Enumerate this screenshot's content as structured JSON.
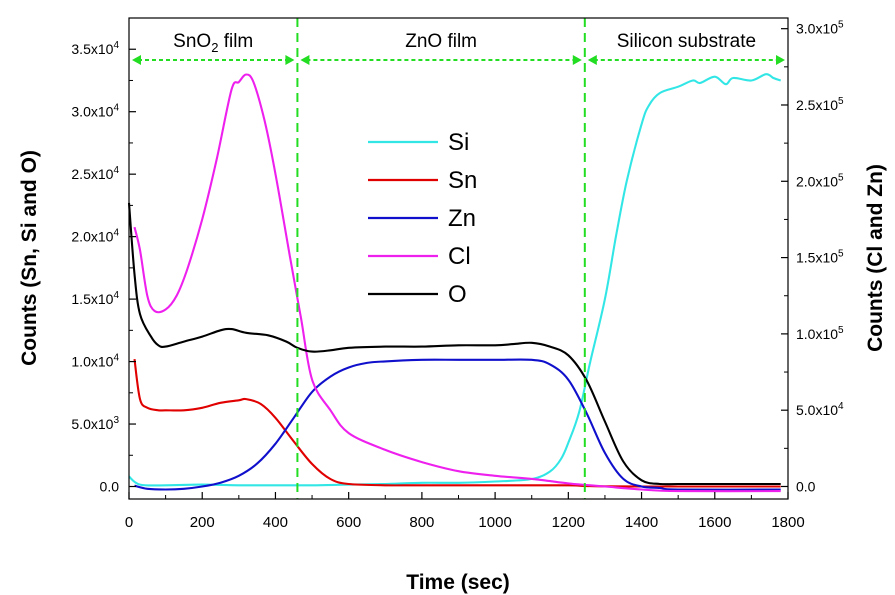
{
  "chart_data": {
    "type": "line",
    "xlabel": "Time (sec)",
    "ylabel_left": "Counts (Sn, Si and O)",
    "ylabel_right": "Counts (Cl and Zn)",
    "xlim": [
      0,
      1800
    ],
    "ylim_left": [
      -1000,
      37500
    ],
    "ylim_right": [
      -8200,
      307000
    ],
    "x_ticks": [
      0,
      200,
      400,
      600,
      800,
      1000,
      1200,
      1400,
      1600,
      1800
    ],
    "y_left_ticks": [
      0,
      5000,
      10000,
      15000,
      20000,
      25000,
      30000,
      35000
    ],
    "y_left_tick_labels": [
      "0.0",
      "5.0x10",
      "1.0x10",
      "1.5x10",
      "2.0x10",
      "2.5x10",
      "3.0x10",
      "3.5x10"
    ],
    "y_left_tick_exps": [
      "",
      "3",
      "4",
      "4",
      "4",
      "4",
      "4",
      "4"
    ],
    "y_right_ticks": [
      0,
      50000,
      100000,
      150000,
      200000,
      250000,
      300000
    ],
    "y_right_tick_labels": [
      "0.0",
      "5.0x10",
      "1.0x10",
      "1.5x10",
      "2.0x10",
      "2.5x10",
      "3.0x10"
    ],
    "y_right_tick_exps": [
      "",
      "4",
      "5",
      "5",
      "5",
      "5",
      "5"
    ],
    "regions": [
      {
        "label_main": "SnO",
        "label_sub": "2",
        "label_tail": " film",
        "x_start": 0,
        "x_end": 460
      },
      {
        "label_main": "ZnO film",
        "label_sub": "",
        "label_tail": "",
        "x_start": 460,
        "x_end": 1245
      },
      {
        "label_main": "Silicon substrate",
        "label_sub": "",
        "label_tail": "",
        "x_start": 1245,
        "x_end": 1800
      }
    ],
    "boundaries": [
      460,
      1245
    ],
    "series": [
      {
        "name": "Si",
        "axis": "left",
        "color": "#33e6e6",
        "x": [
          0,
          30,
          100,
          200,
          300,
          400,
          500,
          600,
          700,
          800,
          900,
          1000,
          1100,
          1150,
          1180,
          1200,
          1230,
          1260,
          1300,
          1330,
          1360,
          1400,
          1420,
          1450,
          1500,
          1540,
          1560,
          1600,
          1630,
          1650,
          1700,
          1740,
          1760,
          1780
        ],
        "y": [
          800,
          150,
          100,
          150,
          100,
          100,
          100,
          150,
          200,
          300,
          300,
          400,
          600,
          1200,
          2200,
          3500,
          6000,
          10000,
          15000,
          20000,
          24500,
          29000,
          30500,
          31500,
          32000,
          32500,
          32300,
          32800,
          32200,
          32700,
          32500,
          33000,
          32700,
          32500
        ]
      },
      {
        "name": "Sn",
        "axis": "left",
        "color": "#e00000",
        "x": [
          15,
          30,
          50,
          80,
          100,
          150,
          200,
          250,
          300,
          320,
          360,
          400,
          450,
          500,
          550,
          600,
          700,
          800,
          1000,
          1200,
          1240,
          1300,
          1400,
          1500,
          1780
        ],
        "y": [
          10200,
          7000,
          6300,
          6100,
          6100,
          6100,
          6300,
          6700,
          6900,
          7000,
          6600,
          5500,
          3600,
          1800,
          600,
          200,
          100,
          100,
          100,
          100,
          50,
          20,
          0,
          0,
          0
        ]
      },
      {
        "name": "Zn",
        "axis": "right",
        "color": "#1010cc",
        "x": [
          15,
          50,
          100,
          150,
          200,
          250,
          300,
          350,
          400,
          450,
          500,
          550,
          600,
          650,
          700,
          800,
          900,
          1000,
          1100,
          1150,
          1200,
          1250,
          1300,
          1350,
          1400,
          1450,
          1500,
          1780
        ],
        "y": [
          500,
          -1500,
          -2000,
          -1500,
          0,
          2500,
          7000,
          15000,
          28000,
          45000,
          62000,
          72000,
          78000,
          81000,
          82000,
          83000,
          83000,
          83000,
          83000,
          80000,
          70000,
          48000,
          22000,
          5000,
          0,
          -1000,
          -2000,
          -2000
        ]
      },
      {
        "name": "Cl",
        "axis": "right",
        "color": "#ee20ee",
        "x": [
          15,
          30,
          50,
          70,
          100,
          130,
          160,
          200,
          240,
          280,
          300,
          320,
          340,
          370,
          400,
          440,
          470,
          500,
          550,
          600,
          700,
          800,
          900,
          1000,
          1100,
          1150,
          1200,
          1250,
          1300,
          1400,
          1500,
          1780
        ],
        "y": [
          170000,
          155000,
          125000,
          115000,
          116000,
          125000,
          143000,
          175000,
          215000,
          260000,
          265000,
          270000,
          265000,
          240000,
          205000,
          150000,
          110000,
          70000,
          50000,
          35000,
          24000,
          16000,
          10000,
          7000,
          5000,
          3500,
          2000,
          1000,
          0,
          -2000,
          -3000,
          -3000
        ]
      },
      {
        "name": "O",
        "axis": "left",
        "color": "#000000",
        "x": [
          0,
          15,
          30,
          60,
          80,
          100,
          150,
          200,
          250,
          280,
          320,
          380,
          430,
          460,
          500,
          550,
          600,
          700,
          800,
          900,
          1000,
          1050,
          1100,
          1150,
          1200,
          1250,
          1300,
          1350,
          1400,
          1450,
          1500,
          1600,
          1780
        ],
        "y": [
          22700,
          17000,
          13800,
          12000,
          11300,
          11200,
          11600,
          12000,
          12500,
          12600,
          12300,
          12100,
          11600,
          11100,
          10800,
          10900,
          11100,
          11200,
          11200,
          11300,
          11300,
          11400,
          11500,
          11200,
          10500,
          8500,
          5200,
          2000,
          500,
          200,
          200,
          200,
          200
        ]
      }
    ],
    "legend": {
      "placement": "center",
      "order": [
        "Si",
        "Sn",
        "Zn",
        "Cl",
        "O"
      ]
    },
    "grid": false
  }
}
